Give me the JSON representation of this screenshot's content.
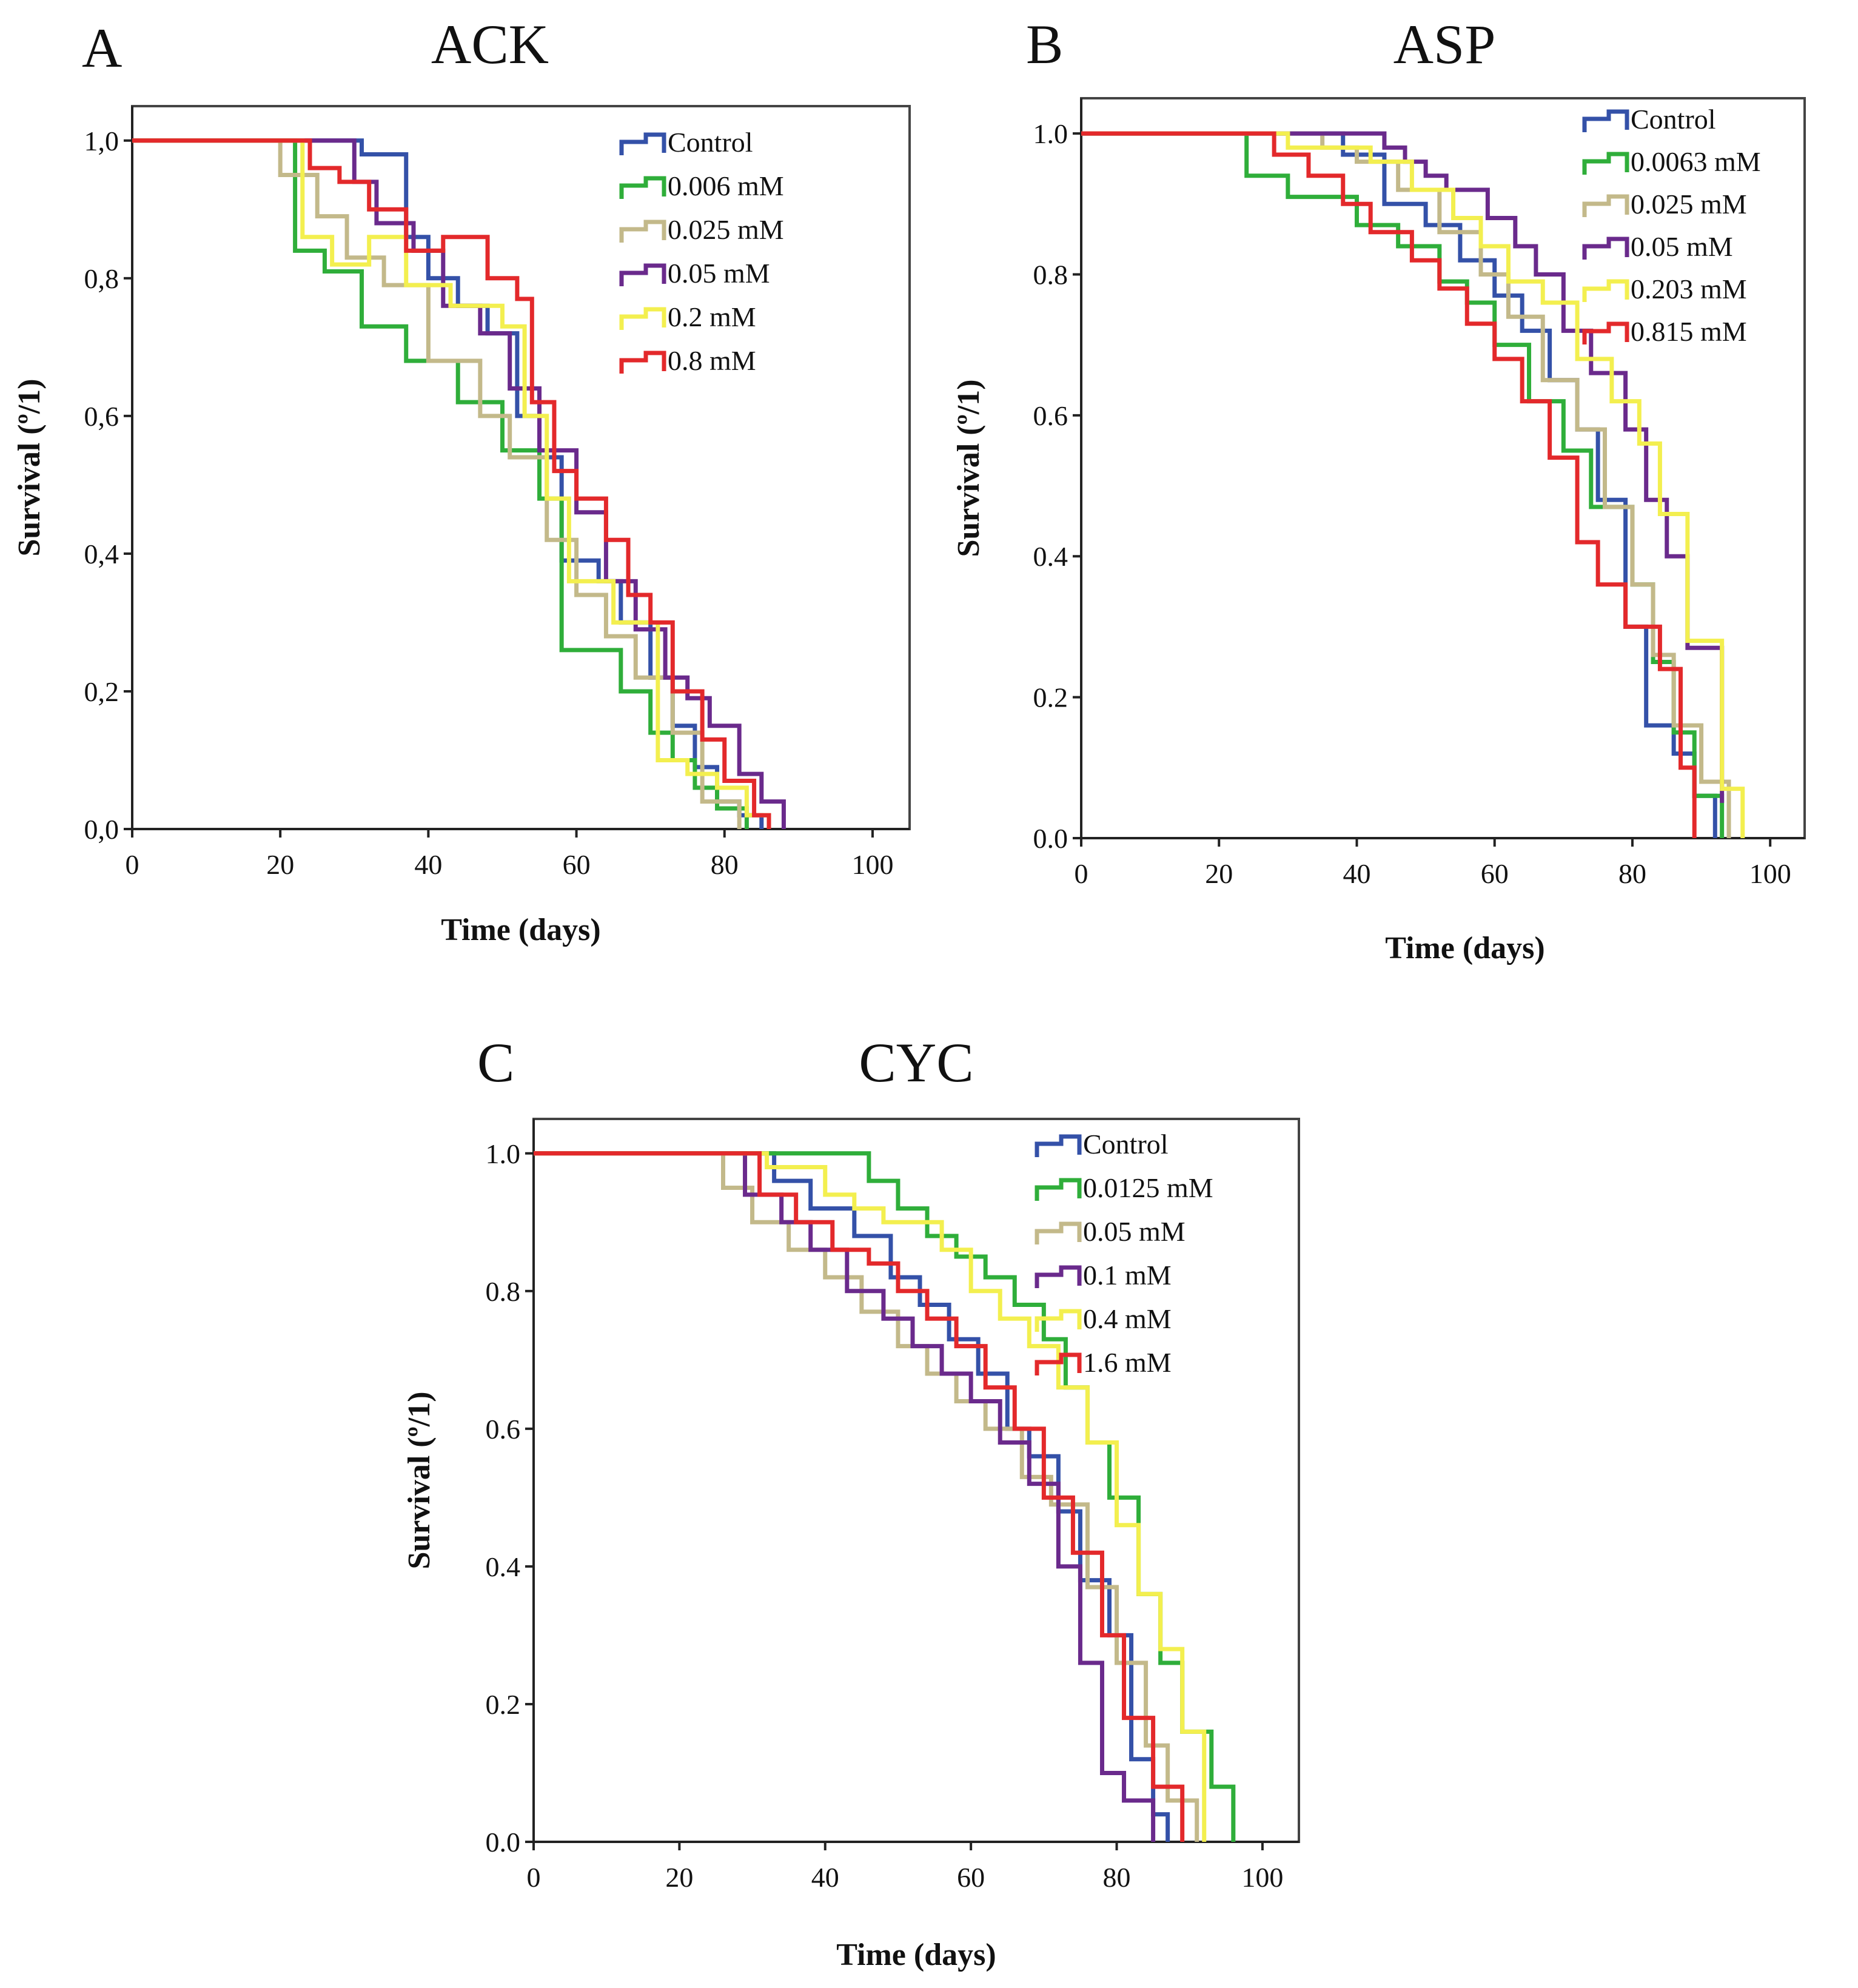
{
  "colors": {
    "blue": "#3451a8",
    "green": "#2fae3a",
    "tan": "#c3b98a",
    "purple": "#6a2a8c",
    "yellow": "#f3ef4f",
    "red": "#e3292b"
  },
  "chart_data": [
    {
      "type": "line",
      "panel_letter": "A",
      "title": "ACK",
      "xlabel": "Time (days)",
      "ylabel": "Survival (º/1)",
      "xlim": [
        0,
        105
      ],
      "ylim": [
        0,
        1.05
      ],
      "xticks": [
        0,
        20,
        40,
        60,
        80,
        100
      ],
      "xtick_labels": [
        "0",
        "20",
        "40",
        "60",
        "80",
        "100"
      ],
      "yticks": [
        0,
        0.2,
        0.4,
        0.6,
        0.8,
        1.0
      ],
      "ytick_labels": [
        "0,0",
        "0,2",
        "0,4",
        "0,6",
        "0,8",
        "1,0"
      ],
      "legend_position": "top-right",
      "series": [
        {
          "name": "Control",
          "color": "blue",
          "x": [
            0,
            28,
            31,
            37,
            40,
            44,
            48,
            52,
            55,
            58,
            63,
            66,
            70,
            73,
            76,
            79,
            82,
            85
          ],
          "y": [
            1.0,
            1.0,
            0.98,
            0.86,
            0.8,
            0.76,
            0.72,
            0.6,
            0.54,
            0.39,
            0.36,
            0.3,
            0.22,
            0.15,
            0.09,
            0.04,
            0.02,
            0.0
          ]
        },
        {
          "name": "0.006 mM",
          "color": "green",
          "x": [
            0,
            19,
            22,
            26,
            31,
            37,
            44,
            50,
            55,
            58,
            66,
            70,
            73,
            76,
            79,
            83
          ],
          "y": [
            1.0,
            1.0,
            0.84,
            0.81,
            0.73,
            0.68,
            0.62,
            0.55,
            0.48,
            0.26,
            0.2,
            0.14,
            0.1,
            0.06,
            0.03,
            0.0
          ]
        },
        {
          "name": "0.025 mM",
          "color": "tan",
          "x": [
            0,
            16,
            20,
            25,
            29,
            34,
            40,
            47,
            51,
            56,
            60,
            64,
            68,
            73,
            77,
            82
          ],
          "y": [
            1.0,
            1.0,
            0.95,
            0.89,
            0.83,
            0.79,
            0.68,
            0.6,
            0.54,
            0.42,
            0.34,
            0.28,
            0.22,
            0.14,
            0.04,
            0.0
          ]
        },
        {
          "name": "0.05 mM",
          "color": "purple",
          "x": [
            0,
            26,
            30,
            33,
            38,
            42,
            47,
            51,
            55,
            60,
            64,
            68,
            72,
            75,
            78,
            82,
            85,
            88
          ],
          "y": [
            1.0,
            1.0,
            0.94,
            0.88,
            0.84,
            0.76,
            0.72,
            0.64,
            0.55,
            0.46,
            0.36,
            0.29,
            0.22,
            0.19,
            0.15,
            0.08,
            0.04,
            0.0
          ]
        },
        {
          "name": "0.2 mM",
          "color": "yellow",
          "x": [
            0,
            21,
            23,
            27,
            32,
            37,
            43,
            50,
            53,
            56,
            59,
            65,
            71,
            75,
            79,
            83,
            86
          ],
          "y": [
            1.0,
            1.0,
            0.86,
            0.82,
            0.86,
            0.79,
            0.76,
            0.73,
            0.6,
            0.48,
            0.36,
            0.3,
            0.1,
            0.08,
            0.06,
            0.02,
            0.0
          ]
        },
        {
          "name": "0.8 mM",
          "color": "red",
          "x": [
            0,
            22,
            24,
            28,
            32,
            37,
            42,
            48,
            52,
            54,
            57,
            60,
            64,
            67,
            70,
            73,
            77,
            80,
            84,
            86
          ],
          "y": [
            1.0,
            1.0,
            0.96,
            0.94,
            0.9,
            0.84,
            0.86,
            0.8,
            0.77,
            0.62,
            0.52,
            0.48,
            0.42,
            0.34,
            0.3,
            0.2,
            0.13,
            0.07,
            0.02,
            0.0
          ]
        }
      ]
    },
    {
      "type": "line",
      "panel_letter": "B",
      "title": "ASP",
      "xlabel": "Time (days)",
      "ylabel": "Survival (º/1)",
      "xlim": [
        0,
        105
      ],
      "ylim": [
        0,
        1.05
      ],
      "xticks": [
        0,
        20,
        40,
        60,
        80,
        100
      ],
      "xtick_labels": [
        "0",
        "20",
        "40",
        "60",
        "80",
        "100"
      ],
      "yticks": [
        0,
        0.2,
        0.4,
        0.6,
        0.8,
        1.0
      ],
      "ytick_labels": [
        "0.0",
        "0.2",
        "0.4",
        "0.6",
        "0.8",
        "1.0"
      ],
      "legend_position": "top-right",
      "series": [
        {
          "name": "Control",
          "color": "blue",
          "x": [
            0,
            30,
            38,
            44,
            50,
            55,
            60,
            64,
            68,
            72,
            75,
            79,
            82,
            86,
            89,
            92
          ],
          "y": [
            1.0,
            1.0,
            0.97,
            0.9,
            0.87,
            0.82,
            0.77,
            0.72,
            0.65,
            0.58,
            0.48,
            0.3,
            0.16,
            0.12,
            0.06,
            0.0
          ]
        },
        {
          "name": "0.0063 mM",
          "color": "green",
          "x": [
            0,
            23,
            24,
            30,
            40,
            46,
            52,
            56,
            60,
            65,
            70,
            74,
            80,
            83,
            86,
            89,
            93
          ],
          "y": [
            1.0,
            1.0,
            0.94,
            0.91,
            0.87,
            0.84,
            0.79,
            0.76,
            0.7,
            0.62,
            0.55,
            0.47,
            0.36,
            0.25,
            0.15,
            0.06,
            0.0
          ]
        },
        {
          "name": "0.025 mM",
          "color": "tan",
          "x": [
            0,
            28,
            35,
            40,
            46,
            52,
            58,
            62,
            67,
            72,
            76,
            80,
            83,
            86,
            90,
            94
          ],
          "y": [
            1.0,
            1.0,
            0.98,
            0.96,
            0.92,
            0.86,
            0.8,
            0.74,
            0.65,
            0.58,
            0.47,
            0.36,
            0.26,
            0.16,
            0.08,
            0.0
          ]
        },
        {
          "name": "0.05 mM",
          "color": "purple",
          "x": [
            0,
            27,
            44,
            47,
            50,
            53,
            59,
            63,
            66,
            70,
            74,
            79,
            82,
            85,
            88,
            93
          ],
          "y": [
            1.0,
            1.0,
            0.98,
            0.96,
            0.94,
            0.92,
            0.88,
            0.84,
            0.8,
            0.72,
            0.66,
            0.58,
            0.48,
            0.4,
            0.27,
            0.05
          ]
        },
        {
          "name": "0.203 mM",
          "color": "yellow",
          "x": [
            0,
            26,
            30,
            42,
            48,
            54,
            58,
            62,
            67,
            72,
            77,
            81,
            84,
            88,
            93,
            96
          ],
          "y": [
            1.0,
            1.0,
            0.98,
            0.96,
            0.92,
            0.88,
            0.84,
            0.79,
            0.76,
            0.68,
            0.62,
            0.56,
            0.46,
            0.28,
            0.07,
            0.0
          ]
        },
        {
          "name": "0.815 mM",
          "color": "red",
          "x": [
            0,
            26,
            28,
            33,
            38,
            42,
            48,
            52,
            56,
            60,
            64,
            68,
            72,
            75,
            79,
            84,
            87,
            89
          ],
          "y": [
            1.0,
            1.0,
            0.97,
            0.94,
            0.9,
            0.86,
            0.82,
            0.78,
            0.73,
            0.68,
            0.62,
            0.54,
            0.42,
            0.36,
            0.3,
            0.24,
            0.1,
            0.0
          ]
        }
      ]
    },
    {
      "type": "line",
      "panel_letter": "C",
      "title": "CYC",
      "xlabel": "Time (days)",
      "ylabel": "Survival (º/1)",
      "xlim": [
        0,
        105
      ],
      "ylim": [
        0,
        1.05
      ],
      "xticks": [
        0,
        20,
        40,
        60,
        80,
        100
      ],
      "xtick_labels": [
        "0",
        "20",
        "40",
        "60",
        "80",
        "100"
      ],
      "yticks": [
        0,
        0.2,
        0.4,
        0.6,
        0.8,
        1.0
      ],
      "ytick_labels": [
        "0.0",
        "0.2",
        "0.4",
        "0.6",
        "0.8",
        "1.0"
      ],
      "legend_position": "top-right",
      "series": [
        {
          "name": "Control",
          "color": "blue",
          "x": [
            0,
            29,
            33,
            38,
            44,
            49,
            53,
            57,
            61,
            65,
            68,
            72,
            75,
            79,
            82,
            85,
            87
          ],
          "y": [
            1.0,
            1.0,
            0.96,
            0.92,
            0.88,
            0.82,
            0.78,
            0.73,
            0.68,
            0.6,
            0.56,
            0.48,
            0.38,
            0.3,
            0.12,
            0.04,
            0.0
          ]
        },
        {
          "name": "0.0125 mM",
          "color": "green",
          "x": [
            0,
            43,
            46,
            50,
            54,
            58,
            62,
            66,
            70,
            73,
            76,
            79,
            83,
            86,
            89,
            93,
            96
          ],
          "y": [
            1.0,
            1.0,
            0.96,
            0.92,
            0.88,
            0.85,
            0.82,
            0.78,
            0.73,
            0.66,
            0.58,
            0.5,
            0.36,
            0.26,
            0.16,
            0.08,
            0.0
          ]
        },
        {
          "name": "0.05 mM",
          "color": "tan",
          "x": [
            0,
            22,
            26,
            30,
            35,
            40,
            45,
            50,
            54,
            58,
            62,
            67,
            71,
            76,
            80,
            84,
            87,
            91
          ],
          "y": [
            1.0,
            1.0,
            0.95,
            0.9,
            0.86,
            0.82,
            0.77,
            0.72,
            0.68,
            0.64,
            0.6,
            0.53,
            0.49,
            0.37,
            0.26,
            0.14,
            0.06,
            0.0
          ]
        },
        {
          "name": "0.1 mM",
          "color": "purple",
          "x": [
            0,
            25,
            29,
            34,
            38,
            43,
            48,
            52,
            56,
            60,
            64,
            68,
            72,
            75,
            78,
            81,
            85
          ],
          "y": [
            1.0,
            1.0,
            0.94,
            0.9,
            0.86,
            0.8,
            0.76,
            0.72,
            0.68,
            0.64,
            0.58,
            0.52,
            0.4,
            0.26,
            0.1,
            0.06,
            0.0
          ]
        },
        {
          "name": "0.4 mM",
          "color": "yellow",
          "x": [
            0,
            26,
            32,
            40,
            44,
            48,
            56,
            60,
            64,
            68,
            72,
            76,
            80,
            83,
            86,
            89,
            92
          ],
          "y": [
            1.0,
            1.0,
            0.98,
            0.94,
            0.92,
            0.9,
            0.86,
            0.8,
            0.76,
            0.72,
            0.66,
            0.58,
            0.46,
            0.36,
            0.28,
            0.16,
            0.0
          ]
        },
        {
          "name": "1.6 mM",
          "color": "red",
          "x": [
            0,
            27,
            31,
            36,
            41,
            46,
            50,
            54,
            58,
            62,
            66,
            70,
            74,
            78,
            81,
            85,
            89
          ],
          "y": [
            1.0,
            1.0,
            0.94,
            0.9,
            0.86,
            0.84,
            0.8,
            0.76,
            0.72,
            0.66,
            0.6,
            0.5,
            0.42,
            0.3,
            0.18,
            0.08,
            0.0
          ]
        }
      ]
    }
  ]
}
